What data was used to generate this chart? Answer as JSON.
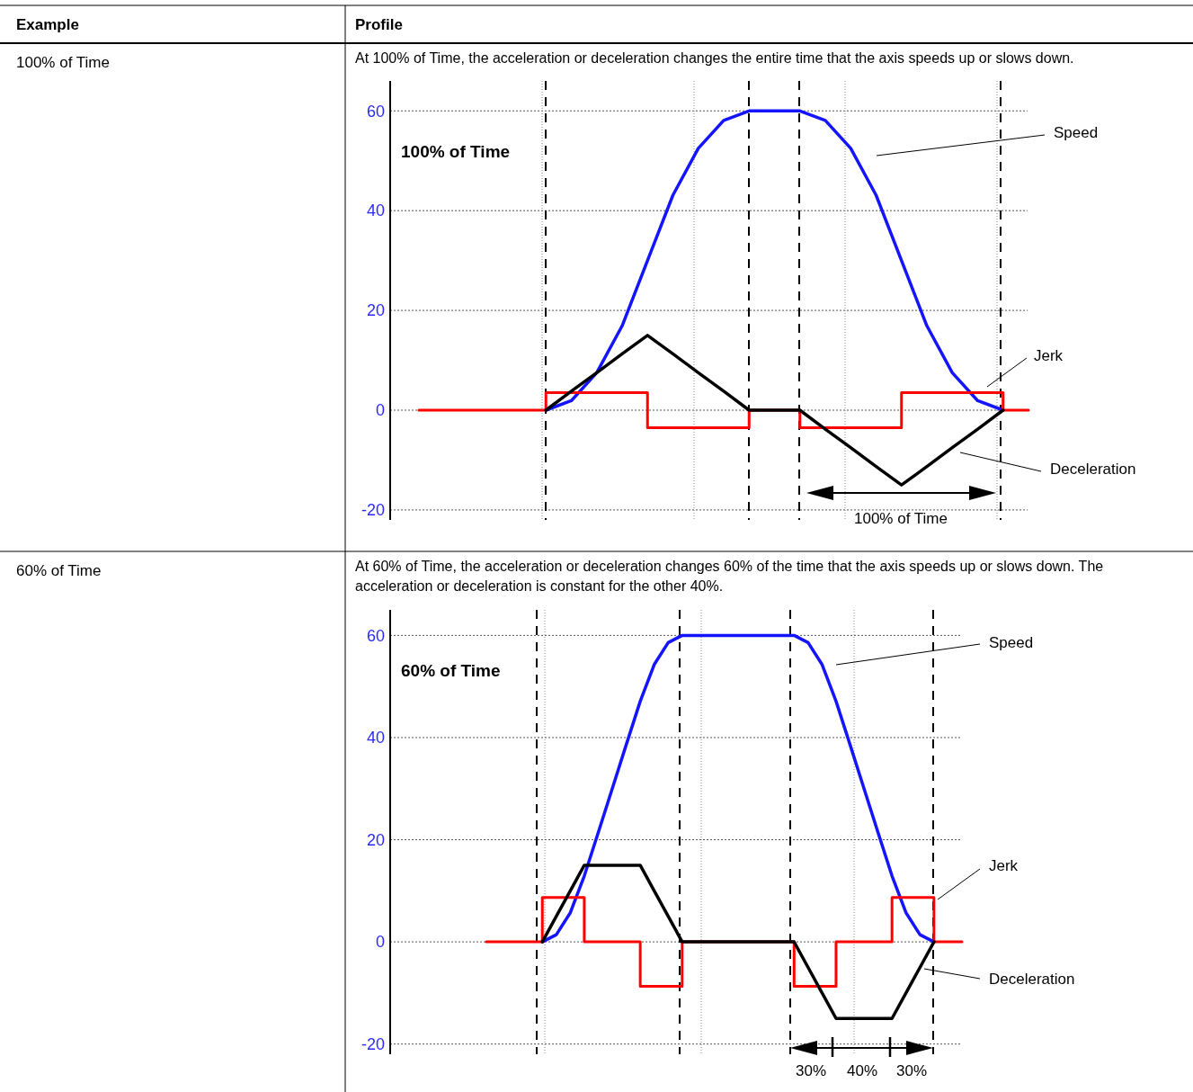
{
  "chart_data": [
    {
      "type": "line",
      "title": "At 100% of Time, the acceleration or deceleration changes the entire time that the axis speeds up or slows down.",
      "annotations": [
        "Example",
        "Profile",
        "100% of Time",
        "100% of Time",
        "100% of Time"
      ],
      "categories": [
        null,
        null,
        null,
        null,
        null,
        null,
        null,
        null,
        null,
        null,
        null,
        null,
        null,
        null,
        null,
        null,
        null,
        null,
        null,
        null,
        null,
        null,
        null,
        null,
        null
      ],
      "ylim": [
        -22,
        66
      ],
      "yticks": [
        -20,
        0,
        20,
        40,
        60
      ],
      "tick_labels": "y",
      "grid": true,
      "series": [
        {
          "name": "Speed",
          "color": "#1414ff",
          "values": [
            null,
            null,
            null,
            null,
            null,
            0,
            1.9,
            7.5,
            16.9,
            30,
            43.1,
            52.5,
            58.1,
            60,
            60,
            60,
            58.1,
            52.5,
            43.1,
            30,
            16.9,
            7.5,
            1.9,
            0,
            null
          ]
        },
        {
          "name": "Jerk",
          "type": "step",
          "color": "#ff0000",
          "values": [
            0,
            0,
            0,
            0,
            0,
            3.5,
            3.5,
            3.5,
            3.5,
            -3.5,
            -3.5,
            -3.5,
            -3.5,
            0,
            0,
            -3.5,
            -3.5,
            -3.5,
            -3.5,
            3.5,
            3.5,
            3.5,
            3.5,
            0,
            0
          ]
        },
        {
          "name": "Deceleration",
          "color": "#000000",
          "values": [
            null,
            null,
            null,
            null,
            null,
            0,
            3.8,
            7.5,
            11.3,
            15,
            11.3,
            7.5,
            3.8,
            0,
            0,
            0,
            -3.8,
            -7.5,
            -11.3,
            -15,
            -11.3,
            -7.5,
            -3.8,
            0,
            null
          ]
        }
      ]
    },
    {
      "type": "line",
      "title": "At 60% of Time, the acceleration or deceleration changes 60% of the time that the axis speeds up or slows down. The acceleration or deceleration is constant for the other 40%.",
      "annotations": [
        "60% of Time",
        "60% of Time",
        "30%",
        "40%",
        "30%"
      ],
      "categories": [
        null,
        null,
        null,
        null,
        null,
        null,
        null,
        null,
        null,
        null,
        null,
        null,
        null,
        null,
        null,
        null,
        null,
        null,
        null,
        null,
        null,
        null,
        null,
        null,
        null,
        null,
        null,
        null,
        null,
        null,
        null,
        null,
        null,
        null,
        null
      ],
      "ylim": [
        -22,
        65
      ],
      "yticks": [
        -20,
        0,
        20,
        40,
        60
      ],
      "tick_labels": "y",
      "grid": true,
      "series": [
        {
          "name": "Speed",
          "color": "#1414ff",
          "values": [
            null,
            null,
            null,
            null,
            0,
            1.4,
            5.7,
            12.9,
            21.4,
            30,
            38.6,
            47.1,
            54.3,
            58.6,
            60,
            60,
            60,
            60,
            60,
            60,
            60,
            60,
            60,
            58.6,
            54.3,
            47.1,
            38.6,
            30,
            21.4,
            12.9,
            5.7,
            1.4,
            0,
            null,
            null
          ]
        },
        {
          "name": "Jerk",
          "type": "step",
          "color": "#ff0000",
          "values": [
            0,
            0,
            0,
            0,
            8.7,
            8.7,
            8.7,
            0,
            0,
            0,
            0,
            -8.7,
            -8.7,
            -8.7,
            0,
            0,
            0,
            0,
            0,
            0,
            0,
            0,
            -8.7,
            -8.7,
            -8.7,
            0,
            0,
            0,
            0,
            8.7,
            8.7,
            8.7,
            0,
            0,
            0
          ]
        },
        {
          "name": "Deceleration",
          "color": "#000000",
          "values": [
            null,
            null,
            null,
            null,
            0,
            5,
            10,
            15,
            15,
            15,
            15,
            15,
            10,
            5,
            0,
            0,
            0,
            0,
            0,
            0,
            0,
            0,
            0,
            -5,
            -10,
            -15,
            -15,
            -15,
            -15,
            -15,
            -10,
            -5,
            0,
            null,
            null
          ]
        }
      ]
    }
  ]
}
